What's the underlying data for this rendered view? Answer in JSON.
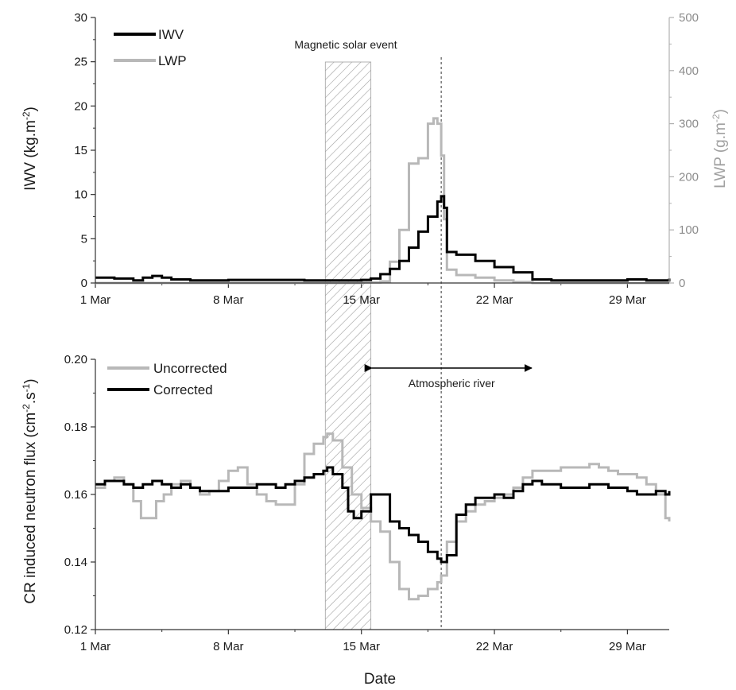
{
  "chart_data": [
    {
      "type": "line",
      "ylabel": "IWV (kg.m",
      "ylabel_sup": "-2",
      "ylabel_end": ")",
      "y2label": "LWP (g.m",
      "y2label_sup": "-2",
      "y2label_end": ")",
      "xlim": [
        1,
        31.2
      ],
      "ylim": [
        0,
        30
      ],
      "y2lim": [
        0,
        500
      ],
      "x_ticks": [
        1,
        8,
        15,
        22,
        29
      ],
      "x_tick_labels": [
        "1 Mar",
        "8 Mar",
        "15 Mar",
        "22 Mar",
        "29 Mar"
      ],
      "y_ticks": [
        "0",
        "5",
        "10",
        "15",
        "20",
        "25",
        "30"
      ],
      "y2_ticks": [
        "0",
        "100",
        "200",
        "300",
        "400",
        "500"
      ],
      "annotations": [
        "Magnetic solar event"
      ],
      "shaded_region": [
        13.1,
        15.5
      ],
      "event_line_x": 19.2,
      "legend_position": "top-left",
      "series": [
        {
          "name": "IWV",
          "color": "#000000",
          "axis": "left",
          "x": [
            1,
            2,
            3,
            3.5,
            4,
            4.5,
            5,
            6,
            7,
            8,
            9,
            10,
            11,
            12,
            13,
            14,
            15,
            15.5,
            16,
            16.5,
            17,
            17.5,
            18,
            18.5,
            19,
            19.2,
            19.35,
            19.5,
            20,
            21,
            22,
            23,
            24,
            25,
            26,
            27,
            28,
            29,
            30,
            31.2
          ],
          "y": [
            0.6,
            0.5,
            0.3,
            0.6,
            0.8,
            0.6,
            0.4,
            0.3,
            0.3,
            0.35,
            0.35,
            0.35,
            0.35,
            0.3,
            0.3,
            0.3,
            0.35,
            0.5,
            1.0,
            1.6,
            2.5,
            4.0,
            5.8,
            7.5,
            9.2,
            9.8,
            8.5,
            3.5,
            3.2,
            2.5,
            1.8,
            1.2,
            0.4,
            0.3,
            0.3,
            0.3,
            0.3,
            0.4,
            0.3,
            0.5
          ]
        },
        {
          "name": "LWP",
          "color": "#b8b8b8",
          "axis": "right",
          "x": [
            1,
            14,
            15,
            16,
            16.5,
            17,
            17.5,
            18,
            18.5,
            18.8,
            19.0,
            19.2,
            19.35,
            19.5,
            20,
            21,
            22,
            23,
            24,
            31.2
          ],
          "y": [
            0,
            0,
            1,
            3,
            40,
            100,
            225,
            235,
            300,
            310,
            300,
            240,
            120,
            25,
            15,
            10,
            5,
            2,
            0,
            0
          ]
        }
      ]
    },
    {
      "type": "line",
      "xlabel": "Date",
      "ylabel": "CR induced neutron flux (cm",
      "ylabel_sup1": "-2",
      "ylabel_mid": ".s",
      "ylabel_sup2": "-1",
      "ylabel_end": ")",
      "xlim": [
        1,
        31.2
      ],
      "ylim": [
        0.12,
        0.2
      ],
      "x_ticks": [
        1,
        8,
        15,
        22,
        29
      ],
      "x_tick_labels": [
        "1 Mar",
        "8 Mar",
        "15 Mar",
        "22 Mar",
        "29 Mar"
      ],
      "y_ticks": [
        "0.12",
        "0.14",
        "0.16",
        "0.18",
        "0.20"
      ],
      "annotations": [
        "Atmospheric river"
      ],
      "arrow_range": [
        15.5,
        24.0
      ],
      "shaded_region": [
        13.1,
        15.5
      ],
      "event_line_x": 19.2,
      "legend_position": "top-left",
      "series": [
        {
          "name": "Uncorrected",
          "color": "#b8b8b8",
          "x": [
            1,
            1.5,
            2,
            2.5,
            3,
            3.4,
            3.8,
            4.2,
            4.6,
            5,
            5.5,
            6,
            6.5,
            7,
            7.5,
            8,
            8.5,
            9,
            9.5,
            10,
            10.5,
            11,
            11.5,
            12,
            12.5,
            13,
            13.2,
            13.5,
            14,
            14.5,
            15,
            15.5,
            16,
            16.5,
            17,
            17.5,
            18,
            18.5,
            19,
            19.2,
            19.5,
            20,
            20.5,
            21,
            21.5,
            22,
            22.5,
            23,
            23.5,
            24,
            24.5,
            25,
            25.5,
            26,
            26.5,
            27,
            27.5,
            28,
            28.5,
            29,
            29.5,
            30,
            30.5,
            31,
            31.2
          ],
          "y": [
            0.162,
            0.164,
            0.165,
            0.163,
            0.158,
            0.153,
            0.153,
            0.158,
            0.16,
            0.163,
            0.164,
            0.162,
            0.16,
            0.161,
            0.164,
            0.167,
            0.168,
            0.163,
            0.16,
            0.158,
            0.157,
            0.157,
            0.163,
            0.172,
            0.175,
            0.177,
            0.178,
            0.176,
            0.168,
            0.16,
            0.156,
            0.152,
            0.149,
            0.14,
            0.132,
            0.129,
            0.13,
            0.132,
            0.134,
            0.136,
            0.146,
            0.152,
            0.155,
            0.157,
            0.158,
            0.159,
            0.16,
            0.162,
            0.165,
            0.167,
            0.167,
            0.167,
            0.168,
            0.168,
            0.168,
            0.169,
            0.168,
            0.167,
            0.166,
            0.166,
            0.165,
            0.163,
            0.16,
            0.153,
            0.152
          ]
        },
        {
          "name": "Corrected",
          "color": "#000000",
          "x": [
            1,
            1.5,
            2,
            2.5,
            3,
            3.5,
            4,
            4.5,
            5,
            5.5,
            6,
            6.5,
            7,
            7.5,
            8,
            8.5,
            9,
            9.5,
            10,
            10.5,
            11,
            11.5,
            12,
            12.5,
            13,
            13.2,
            13.5,
            14,
            14.3,
            14.6,
            15,
            15.5,
            16,
            16.5,
            17,
            17.5,
            18,
            18.5,
            19,
            19.2,
            19.5,
            20,
            20.5,
            21,
            21.5,
            22,
            22.5,
            23,
            23.5,
            24,
            24.5,
            25,
            25.5,
            26,
            26.5,
            27,
            27.5,
            28,
            28.5,
            29,
            29.5,
            30,
            30.5,
            31,
            31.2
          ],
          "y": [
            0.163,
            0.164,
            0.164,
            0.163,
            0.162,
            0.163,
            0.164,
            0.163,
            0.162,
            0.163,
            0.162,
            0.161,
            0.161,
            0.161,
            0.162,
            0.162,
            0.162,
            0.163,
            0.163,
            0.162,
            0.163,
            0.164,
            0.165,
            0.166,
            0.167,
            0.168,
            0.166,
            0.162,
            0.155,
            0.153,
            0.155,
            0.16,
            0.16,
            0.152,
            0.15,
            0.148,
            0.146,
            0.143,
            0.141,
            0.14,
            0.142,
            0.154,
            0.157,
            0.159,
            0.159,
            0.16,
            0.159,
            0.161,
            0.163,
            0.164,
            0.163,
            0.163,
            0.162,
            0.162,
            0.162,
            0.163,
            0.163,
            0.162,
            0.162,
            0.161,
            0.16,
            0.16,
            0.161,
            0.16,
            0.161
          ]
        }
      ]
    }
  ]
}
